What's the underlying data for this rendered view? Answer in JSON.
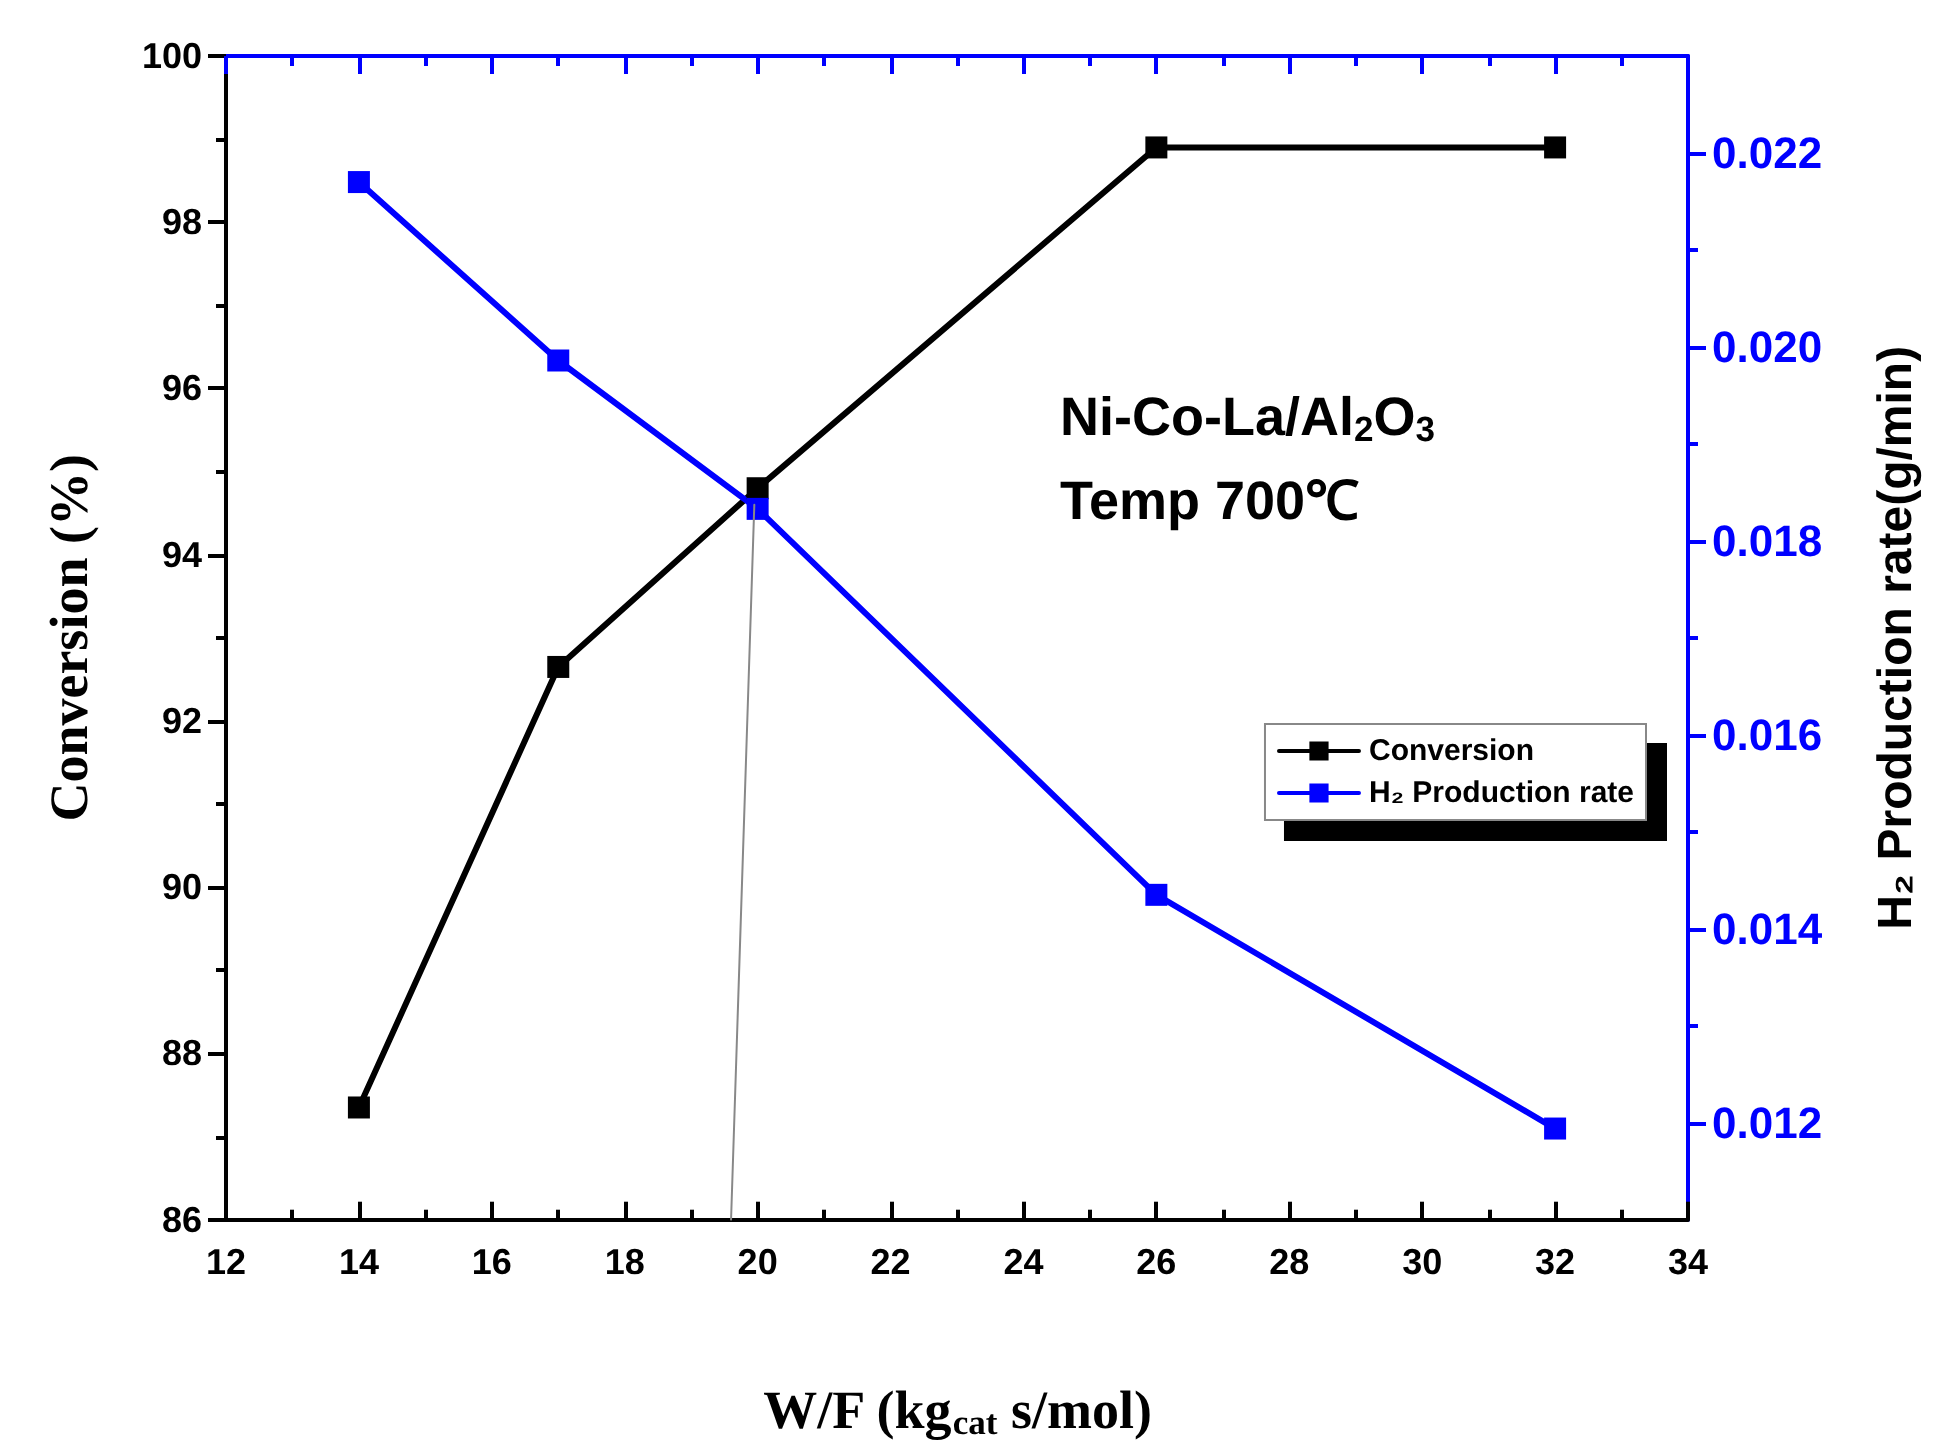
{
  "chart_data": {
    "type": "line",
    "xlabel": "W/F (kg$_{cat}$ s/mol)",
    "ylabel": "Conversion (%)",
    "y2label": "H₂ Production rate(g/min)",
    "x": [
      14,
      17,
      20,
      26,
      32
    ],
    "series": [
      {
        "name": "Conversion",
        "color": "#000000",
        "values": [
          87.35,
          92.65,
          94.8,
          98.9,
          98.9
        ]
      },
      {
        "name": "H₂ Production rate",
        "color": "#0000ff",
        "axis": "y2",
        "values": [
          0.0217,
          0.01986,
          0.01833,
          0.01435,
          0.01194
        ]
      },
      {
        "color": "#888888",
        "x": [
          19.6,
          19.95
        ],
        "values": [
          86,
          94.6
        ],
        "marker": "none"
      }
    ],
    "xlim": [
      12,
      34
    ],
    "xticks": [
      12,
      14,
      16,
      18,
      20,
      22,
      24,
      26,
      28,
      30,
      32,
      34
    ],
    "ylim": [
      86,
      100
    ],
    "yticks": [
      86,
      88,
      90,
      92,
      94,
      96,
      98,
      100
    ],
    "y2lim": [
      0.011,
      0.023
    ],
    "y2ticks": [
      0.012,
      0.014,
      0.016,
      0.018,
      {
        "value": 0.02,
        "label": "0.020"
      },
      0.022
    ],
    "annotations": [
      "Ni-Co-La/Al$_{2}$O$_{3}$",
      "Temp 700℃"
    ],
    "legend": "right",
    "grid": false,
    "marker": "square",
    "line_style": "solid"
  }
}
